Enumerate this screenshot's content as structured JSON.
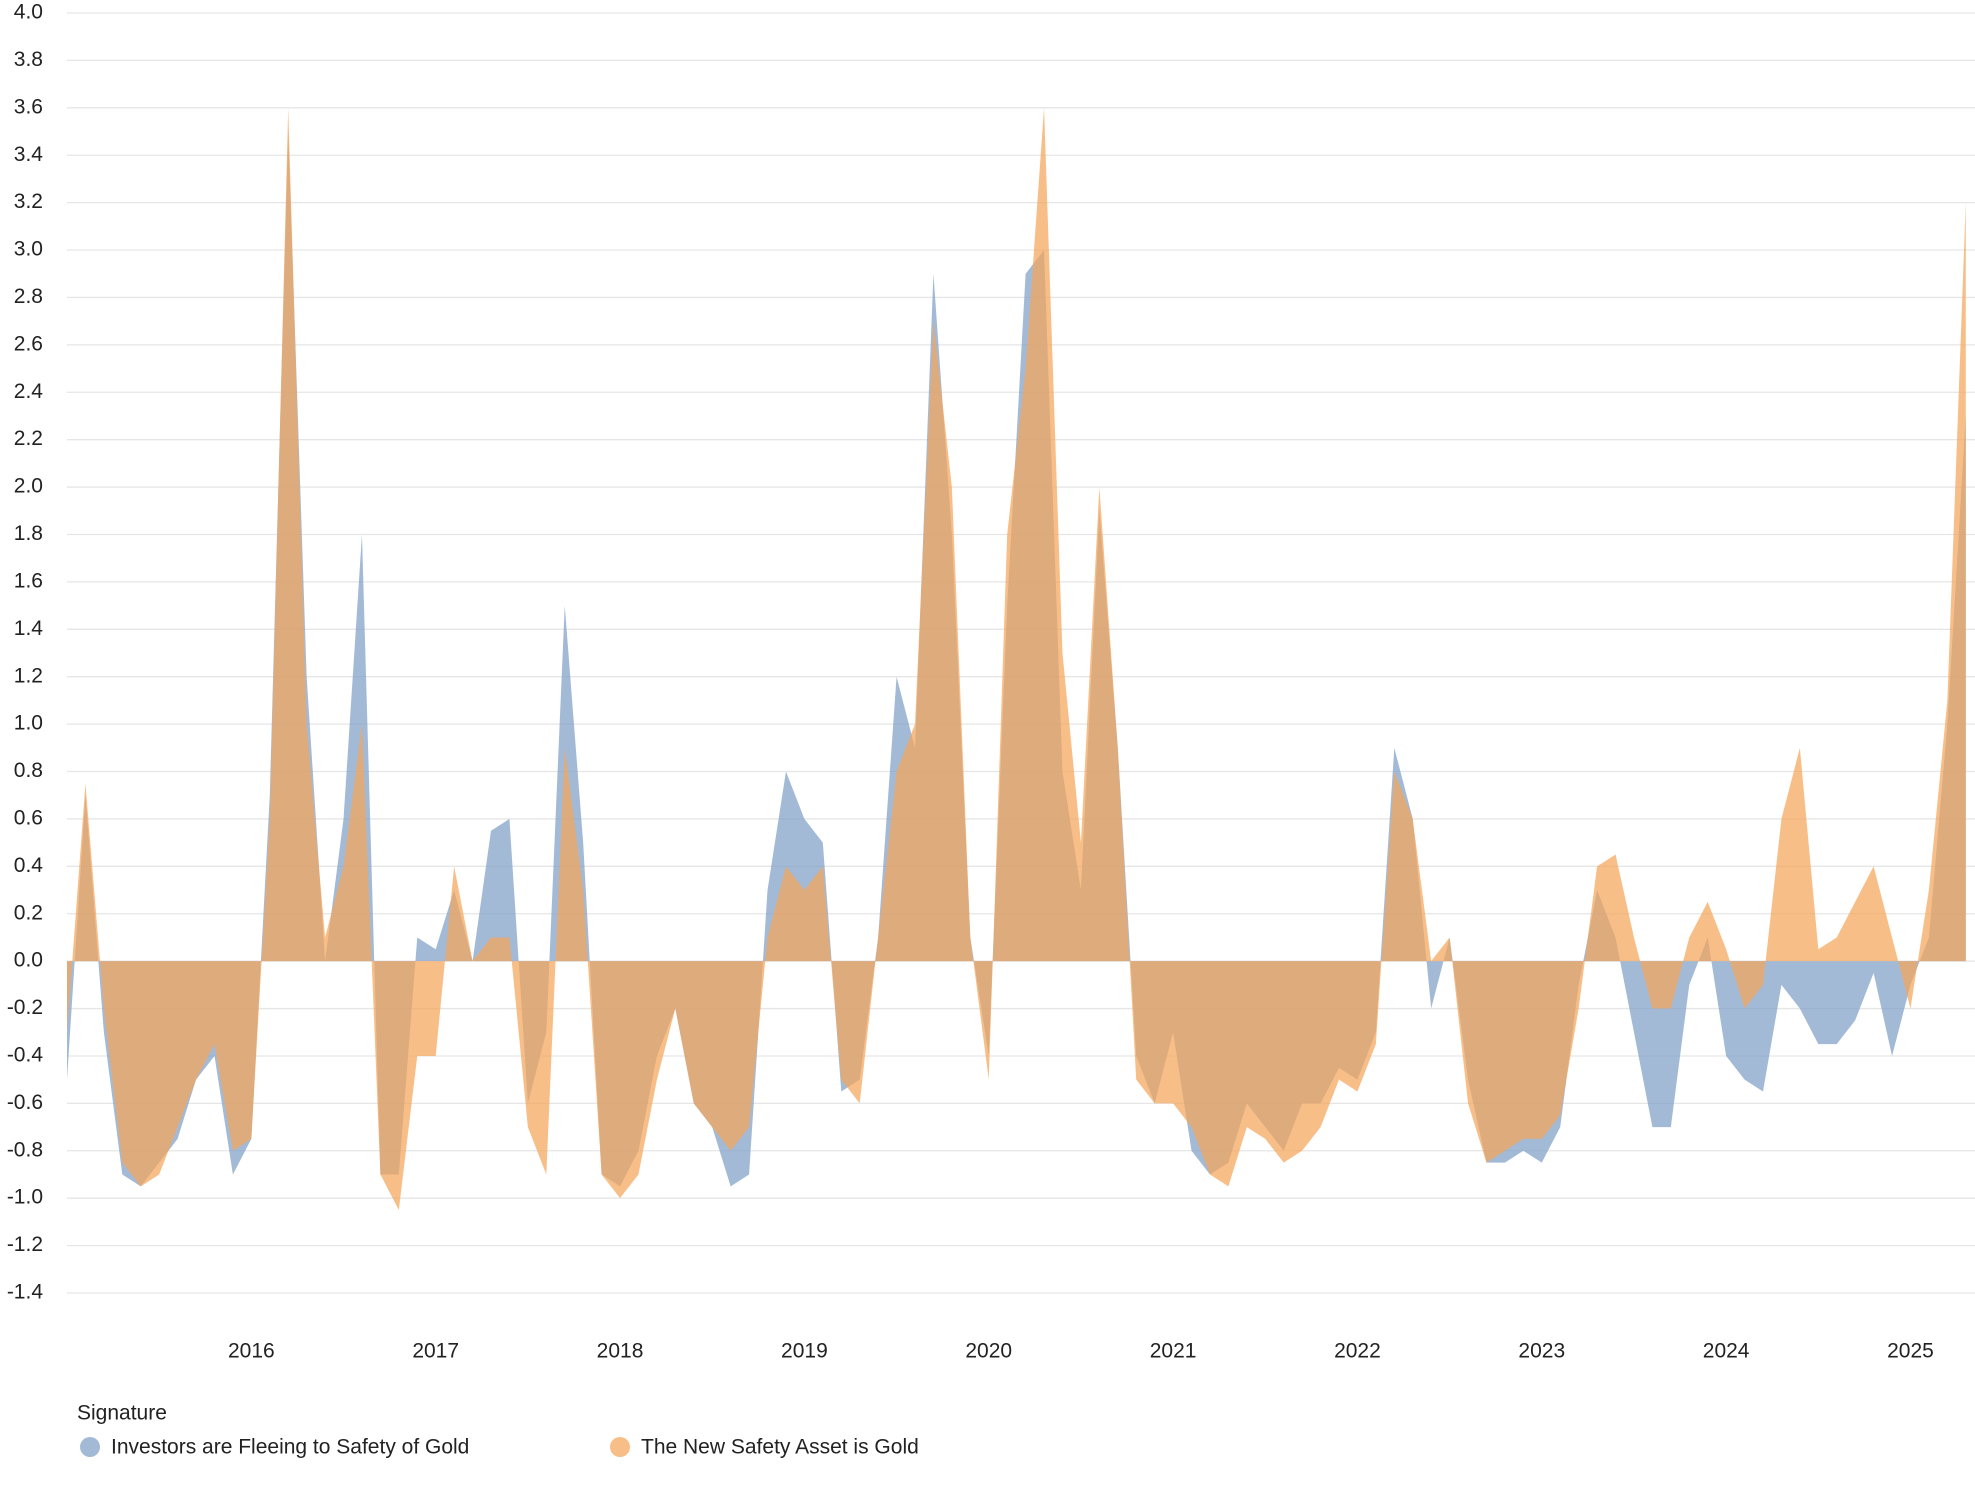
{
  "chart_data": {
    "type": "area",
    "legend_title": "Signature",
    "x": [
      2015.0,
      2015.1,
      2015.2,
      2015.3,
      2015.4,
      2015.5,
      2015.6,
      2015.7,
      2015.8,
      2015.9,
      2016.0,
      2016.1,
      2016.2,
      2016.3,
      2016.4,
      2016.5,
      2016.6,
      2016.7,
      2016.8,
      2016.9,
      2017.0,
      2017.1,
      2017.2,
      2017.3,
      2017.4,
      2017.5,
      2017.6,
      2017.7,
      2017.8,
      2017.9,
      2018.0,
      2018.1,
      2018.2,
      2018.3,
      2018.4,
      2018.5,
      2018.6,
      2018.7,
      2018.8,
      2018.9,
      2019.0,
      2019.1,
      2019.2,
      2019.3,
      2019.4,
      2019.5,
      2019.6,
      2019.7,
      2019.8,
      2019.9,
      2020.0,
      2020.1,
      2020.2,
      2020.3,
      2020.4,
      2020.5,
      2020.6,
      2020.7,
      2020.8,
      2020.9,
      2021.0,
      2021.1,
      2021.2,
      2021.3,
      2021.4,
      2021.5,
      2021.6,
      2021.7,
      2021.8,
      2021.9,
      2022.0,
      2022.1,
      2022.2,
      2022.3,
      2022.4,
      2022.5,
      2022.6,
      2022.7,
      2022.8,
      2022.9,
      2023.0,
      2023.1,
      2023.2,
      2023.3,
      2023.4,
      2023.5,
      2023.6,
      2023.7,
      2023.8,
      2023.9,
      2024.0,
      2024.1,
      2024.2,
      2024.3,
      2024.4,
      2024.5,
      2024.6,
      2024.7,
      2024.8,
      2024.9,
      2025.0,
      2025.1,
      2025.2,
      2025.3
    ],
    "series": [
      {
        "name": "Investors are Fleeing to Safety of Gold",
        "color": "#7f9fc8",
        "values": [
          -0.5,
          0.7,
          -0.3,
          -0.9,
          -0.95,
          -0.85,
          -0.75,
          -0.5,
          -0.4,
          -0.9,
          -0.75,
          0.7,
          3.5,
          1.2,
          0.0,
          0.6,
          1.8,
          -0.9,
          -0.9,
          0.1,
          0.05,
          0.3,
          0.0,
          0.55,
          0.6,
          -0.6,
          -0.3,
          1.5,
          0.5,
          -0.9,
          -0.95,
          -0.8,
          -0.4,
          -0.2,
          -0.6,
          -0.7,
          -0.95,
          -0.9,
          0.3,
          0.8,
          0.6,
          0.5,
          -0.55,
          -0.5,
          0.1,
          1.2,
          0.9,
          2.9,
          1.8,
          0.1,
          -0.4,
          1.5,
          2.9,
          3.0,
          0.8,
          0.3,
          1.9,
          0.9,
          -0.4,
          -0.6,
          -0.3,
          -0.8,
          -0.9,
          -0.85,
          -0.6,
          -0.7,
          -0.8,
          -0.6,
          -0.6,
          -0.45,
          -0.5,
          -0.3,
          0.9,
          0.6,
          -0.2,
          0.1,
          -0.5,
          -0.85,
          -0.85,
          -0.8,
          -0.85,
          -0.7,
          -0.1,
          0.3,
          0.1,
          -0.3,
          -0.7,
          -0.7,
          -0.1,
          0.1,
          -0.4,
          -0.5,
          -0.55,
          -0.1,
          -0.2,
          -0.35,
          -0.35,
          -0.25,
          -0.05,
          -0.4,
          -0.1,
          0.1,
          1.0,
          2.3
        ]
      },
      {
        "name": "The New Safety Asset is Gold",
        "color": "#f5a55a",
        "values": [
          -0.3,
          0.75,
          -0.2,
          -0.85,
          -0.95,
          -0.9,
          -0.7,
          -0.5,
          -0.35,
          -0.8,
          -0.75,
          0.6,
          3.6,
          1.0,
          0.1,
          0.4,
          1.0,
          -0.9,
          -1.05,
          -0.4,
          -0.4,
          0.4,
          0.0,
          0.1,
          0.1,
          -0.7,
          -0.9,
          0.9,
          0.3,
          -0.9,
          -1.0,
          -0.9,
          -0.5,
          -0.2,
          -0.6,
          -0.7,
          -0.8,
          -0.7,
          0.1,
          0.4,
          0.3,
          0.4,
          -0.5,
          -0.6,
          0.1,
          0.8,
          1.0,
          2.7,
          2.0,
          0.1,
          -0.5,
          1.8,
          2.5,
          3.6,
          1.3,
          0.5,
          2.0,
          0.9,
          -0.5,
          -0.6,
          -0.6,
          -0.7,
          -0.9,
          -0.95,
          -0.7,
          -0.75,
          -0.85,
          -0.8,
          -0.7,
          -0.5,
          -0.55,
          -0.35,
          0.8,
          0.6,
          0.0,
          0.1,
          -0.6,
          -0.85,
          -0.8,
          -0.75,
          -0.75,
          -0.65,
          -0.2,
          0.4,
          0.45,
          0.1,
          -0.2,
          -0.2,
          0.1,
          0.25,
          0.05,
          -0.2,
          -0.1,
          0.6,
          0.9,
          0.05,
          0.1,
          0.25,
          0.4,
          0.1,
          -0.2,
          0.3,
          1.1,
          3.2
        ]
      }
    ],
    "xlim": [
      2015.0,
      2025.35
    ],
    "xticks": [
      2016,
      2017,
      2018,
      2019,
      2020,
      2021,
      2022,
      2023,
      2024,
      2025
    ],
    "ylim": [
      -1.4,
      4.0
    ],
    "yticks": [
      -1.4,
      -1.2,
      {
        "value": -1.0,
        "label": "-1.0"
      },
      -0.8,
      -0.6,
      -0.4,
      -0.2,
      {
        "value": 0.0,
        "label": "0.0"
      },
      0.2,
      0.4,
      0.6,
      0.8,
      {
        "value": 1.0,
        "label": "1.0"
      },
      1.2,
      1.4,
      1.6,
      1.8,
      {
        "value": 2.0,
        "label": "2.0"
      },
      2.2,
      2.4,
      2.6,
      2.8,
      {
        "value": 3.0,
        "label": "3.0"
      },
      3.2,
      3.4,
      3.6,
      3.8,
      {
        "value": 4.0,
        "label": "4.0"
      }
    ],
    "grid": true
  }
}
